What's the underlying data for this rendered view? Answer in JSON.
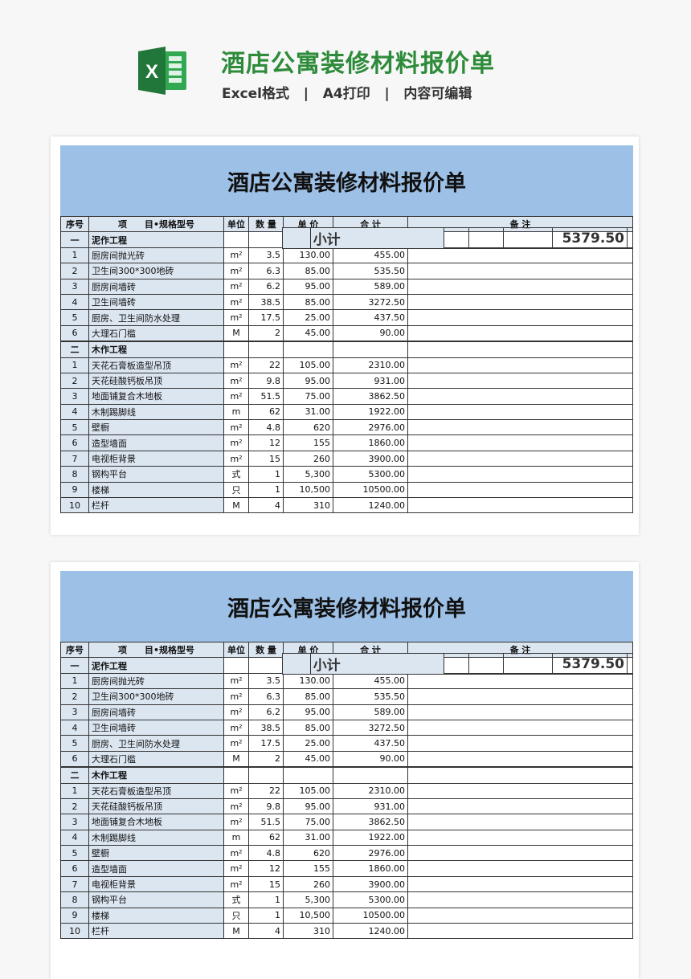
{
  "header": {
    "title": "酒店公寓装修材料报价单",
    "subtitle": "Excel格式   |   A4打印   |   内容可编辑",
    "logo_icon": "excel-icon",
    "accent": "#2e8b3a"
  },
  "sheet": {
    "title": "酒店公寓装修材料报价单",
    "columns": [
      "序号",
      "项　　目•规格型号",
      "单位",
      "数 量",
      "单 价",
      "合 计",
      "备 注"
    ],
    "rows": [
      {
        "type": "sec",
        "cells": [
          "一",
          "泥作工程",
          "",
          "",
          "",
          "",
          ""
        ]
      },
      {
        "type": "item",
        "cells": [
          "1",
          "厨房间抛光砖",
          "m²",
          "3.5",
          "130.00",
          "455.00",
          ""
        ]
      },
      {
        "type": "item",
        "cells": [
          "2",
          "卫生间300*300地砖",
          "m²",
          "6.3",
          "85.00",
          "535.50",
          ""
        ]
      },
      {
        "type": "item",
        "cells": [
          "3",
          "厨房间墙砖",
          "m²",
          "6.2",
          "95.00",
          "589.00",
          ""
        ]
      },
      {
        "type": "item",
        "cells": [
          "4",
          "卫生间墙砖",
          "m²",
          "38.5",
          "85.00",
          "3272.50",
          ""
        ]
      },
      {
        "type": "item",
        "cells": [
          "5",
          "厨房、卫生间防水处理",
          "m²",
          "17.5",
          "25.00",
          "437.50",
          ""
        ]
      },
      {
        "type": "item",
        "cells": [
          "6",
          "大理石门槛",
          "M",
          "2",
          "45.00",
          "90.00",
          ""
        ]
      },
      {
        "type": "sub",
        "cells": [
          "",
          "小计",
          "",
          "",
          "",
          "5379.50",
          ""
        ]
      },
      {
        "type": "sec",
        "cells": [
          "二",
          "木作工程",
          "",
          "",
          "",
          "",
          ""
        ]
      },
      {
        "type": "item",
        "cells": [
          "1",
          "天花石膏板造型吊顶",
          "m²",
          "22",
          "105.00",
          "2310.00",
          ""
        ]
      },
      {
        "type": "item",
        "cells": [
          "2",
          "天花硅酸钙板吊顶",
          "m²",
          "9.8",
          "95.00",
          "931.00",
          ""
        ]
      },
      {
        "type": "item",
        "cells": [
          "3",
          "地面铺复合木地板",
          "m²",
          "51.5",
          "75.00",
          "3862.50",
          ""
        ]
      },
      {
        "type": "item",
        "cells": [
          "4",
          "木制踢脚线",
          "m",
          "62",
          "31.00",
          "1922.00",
          ""
        ]
      },
      {
        "type": "item",
        "cells": [
          "5",
          "壁橱",
          "m²",
          "4.8",
          "620",
          "2976.00",
          ""
        ]
      },
      {
        "type": "item",
        "cells": [
          "6",
          "造型墙面",
          "m²",
          "12",
          "155",
          "1860.00",
          ""
        ]
      },
      {
        "type": "item",
        "cells": [
          "7",
          "电视柜背景",
          "m²",
          "15",
          "260",
          "3900.00",
          ""
        ]
      },
      {
        "type": "item",
        "cells": [
          "8",
          "钢构平台",
          "式",
          "1",
          "5,300",
          "5300.00",
          ""
        ]
      },
      {
        "type": "item",
        "cells": [
          "9",
          "楼梯",
          "只",
          "1",
          "10,500",
          "10500.00",
          ""
        ]
      },
      {
        "type": "item",
        "cells": [
          "10",
          "栏杆",
          "M",
          "4",
          "310",
          "1240.00",
          ""
        ]
      }
    ]
  }
}
